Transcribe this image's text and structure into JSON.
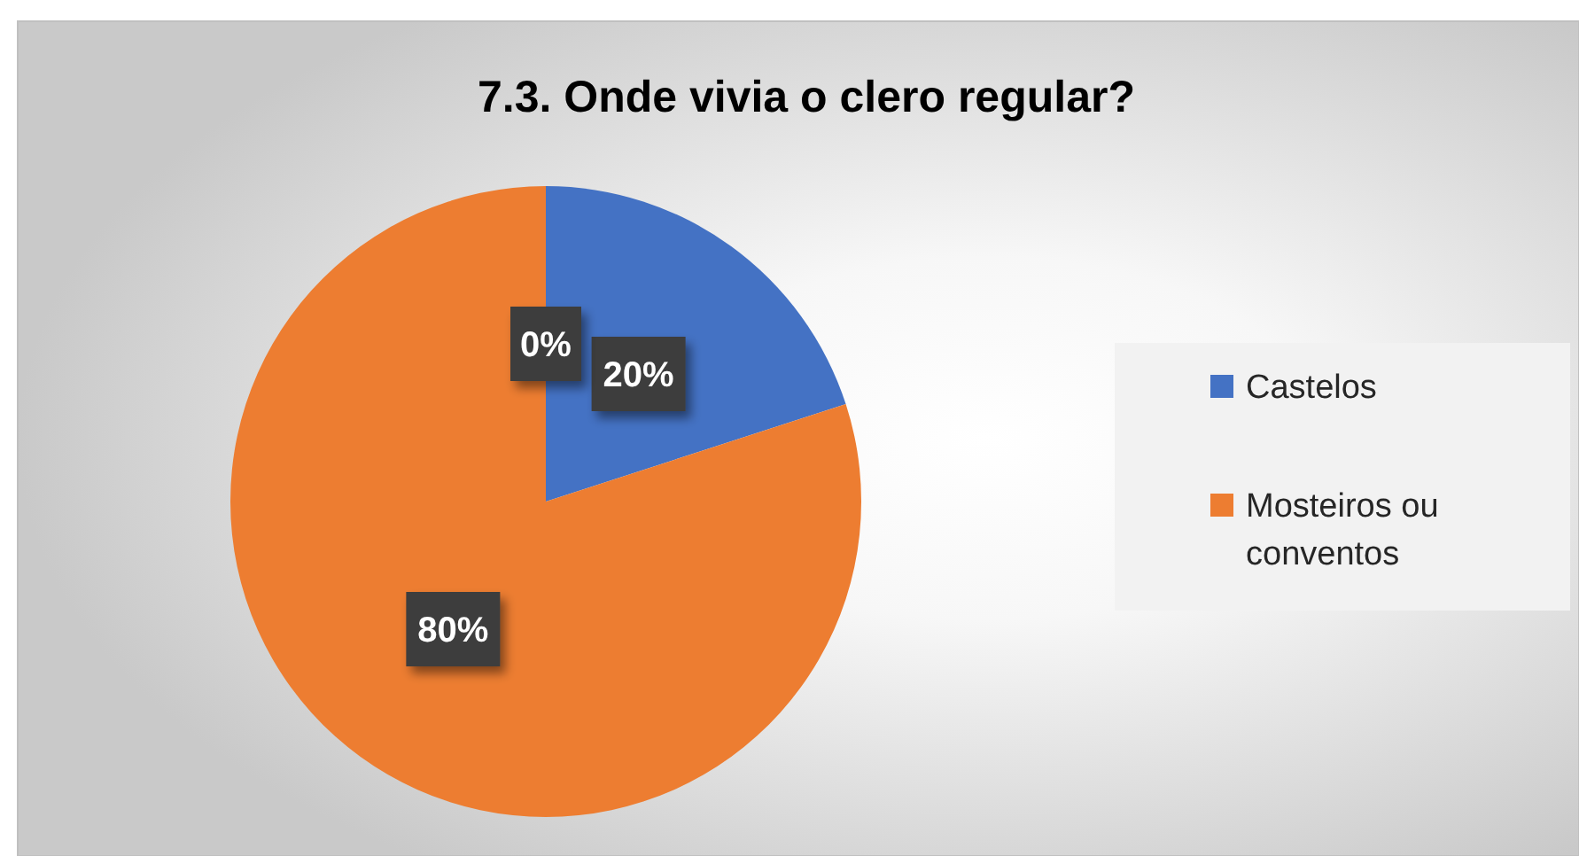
{
  "chart_data": {
    "type": "pie",
    "title": "7.3. Onde vivia o clero regular?",
    "categories": [
      "Castelos",
      "Mosteiros ou conventos",
      null
    ],
    "values": [
      20,
      80,
      0
    ],
    "colors": [
      "#4472c4",
      "#ed7d31",
      "#a5a5a5"
    ],
    "value_labels": [
      "20%",
      "80%",
      "0%"
    ],
    "legend": "right"
  }
}
